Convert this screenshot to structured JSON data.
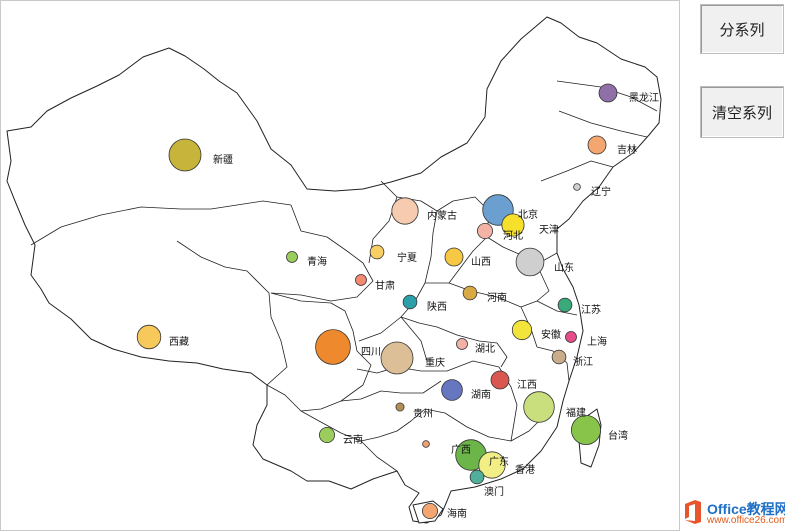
{
  "buttons": {
    "split_series": "分系列",
    "clear_series": "清空系列"
  },
  "logo": {
    "main": "Office教程网",
    "sub": "www.office26.com"
  },
  "chart_data": {
    "type": "scatter",
    "grid": false,
    "legend": "none",
    "points": [
      {
        "name": "黑龙江",
        "color": "#8e6fa8",
        "size": 1.0
      },
      {
        "name": "吉林",
        "color": "#f4a671",
        "size": 1.0
      },
      {
        "name": "辽宁",
        "color": "#d0d0d0",
        "size": 0.2
      },
      {
        "name": "新疆",
        "color": "#c7b43a",
        "size": 2.0
      },
      {
        "name": "内蒙古",
        "color": "#f6cbb0",
        "size": 1.6
      },
      {
        "name": "北京",
        "color": "#6a9fd0",
        "size": 1.9
      },
      {
        "name": "天津",
        "color": "#f6e02c",
        "size": 1.3
      },
      {
        "name": "河北",
        "color": "#f4b3a4",
        "size": 0.8
      },
      {
        "name": "宁夏",
        "color": "#f7cf64",
        "size": 0.7
      },
      {
        "name": "青海",
        "color": "#9acd5c",
        "size": 0.5
      },
      {
        "name": "山西",
        "color": "#f6c843",
        "size": 1.0
      },
      {
        "name": "山东",
        "color": "#cfcfcf",
        "size": 1.7
      },
      {
        "name": "甘肃",
        "color": "#f48a72",
        "size": 0.5
      },
      {
        "name": "陕西",
        "color": "#2d9fa8",
        "size": 0.7
      },
      {
        "name": "河南",
        "color": "#d9a944",
        "size": 0.7
      },
      {
        "name": "江苏",
        "color": "#3aaa7a",
        "size": 0.7
      },
      {
        "name": "西藏",
        "color": "#f7c95a",
        "size": 1.4
      },
      {
        "name": "四川",
        "color": "#ee8a2d",
        "size": 2.2
      },
      {
        "name": "重庆",
        "color": "#dcbf96",
        "size": 2.0
      },
      {
        "name": "湖北",
        "color": "#f4b1a6",
        "size": 0.5
      },
      {
        "name": "安徽",
        "color": "#f2e43a",
        "size": 1.1
      },
      {
        "name": "上海",
        "color": "#e84b8a",
        "size": 0.5
      },
      {
        "name": "浙江",
        "color": "#c9ad8a",
        "size": 0.7
      },
      {
        "name": "湖南",
        "color": "#6776c0",
        "size": 1.2
      },
      {
        "name": "江西",
        "color": "#d9574e",
        "size": 1.0
      },
      {
        "name": "贵州",
        "color": "#b38f58",
        "size": 0.3
      },
      {
        "name": "福建",
        "color": "#c9df7e",
        "size": 1.9
      },
      {
        "name": "台湾",
        "color": "#88c34a",
        "size": 1.8
      },
      {
        "name": "云南",
        "color": "#9acd5c",
        "size": 0.8
      },
      {
        "name": "广西",
        "color": "#f0a070",
        "size": 0.2
      },
      {
        "name": "广东",
        "color": "#6cb548",
        "size": 1.9
      },
      {
        "name": "香港",
        "color": "#f1ee86",
        "size": 1.6
      },
      {
        "name": "澳门",
        "color": "#51ae9a",
        "size": 0.7
      },
      {
        "name": "海南",
        "color": "#f4a671",
        "size": 0.8
      }
    ]
  }
}
